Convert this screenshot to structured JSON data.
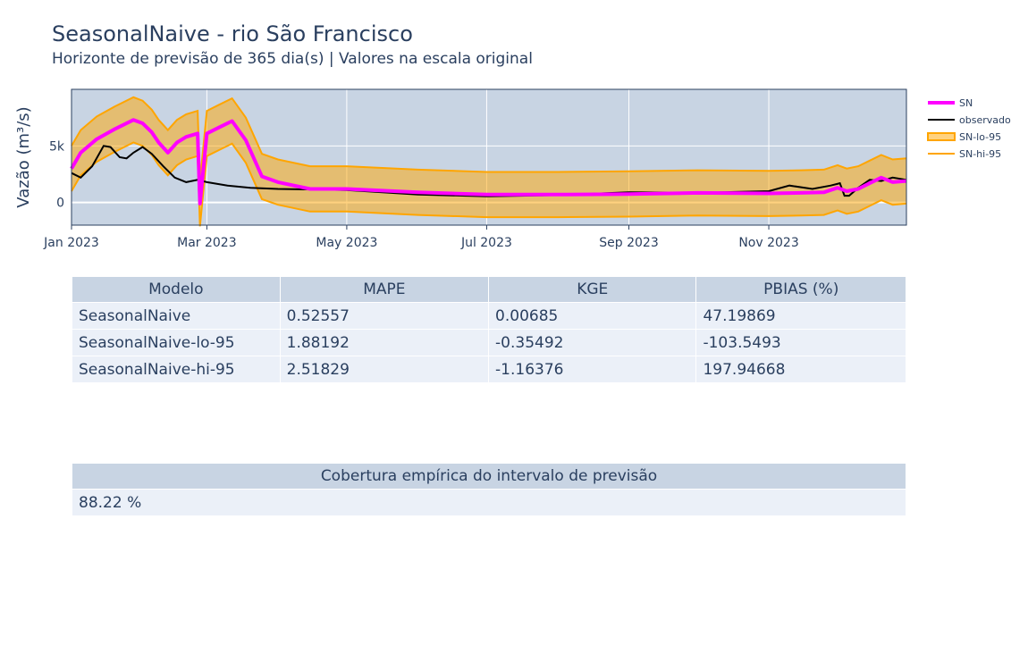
{
  "title": "SeasonalNaive - rio São Francisco",
  "subtitle": "Horizonte de previsão de 365 dia(s) | Valores na escala original",
  "chart_data": {
    "type": "line",
    "ylabel": "Vazão (m³/s)",
    "xlabel": "",
    "x_tick_labels": [
      "Jan 2023",
      "Mar 2023",
      "May 2023",
      "Jul 2023",
      "Sep 2023",
      "Nov 2023"
    ],
    "x_tick_dates": [
      "2023-01-01",
      "2023-03-01",
      "2023-05-01",
      "2023-07-01",
      "2023-09-01",
      "2023-11-01"
    ],
    "xlim": [
      "2023-01-01",
      "2023-12-31"
    ],
    "y_tick_labels": [
      "0",
      "5k"
    ],
    "y_tick_values": [
      0,
      5000
    ],
    "ylim": [
      -2000,
      10000
    ],
    "grid": true,
    "legend_position": "right",
    "colors": {
      "plot_bg": "#c8d4e3",
      "SN": "#ff00ff",
      "observado": "#000000",
      "band_line": "#ffa500",
      "band_fill": "rgba(255,165,0,0.5)"
    },
    "series": [
      {
        "name": "SN",
        "x": [
          "2023-01-01",
          "2023-01-05",
          "2023-01-12",
          "2023-01-20",
          "2023-01-28",
          "2023-02-01",
          "2023-02-05",
          "2023-02-08",
          "2023-02-12",
          "2023-02-16",
          "2023-02-20",
          "2023-02-25",
          "2023-02-26",
          "2023-03-01",
          "2023-03-06",
          "2023-03-12",
          "2023-03-18",
          "2023-03-25",
          "2023-04-01",
          "2023-04-15",
          "2023-05-01",
          "2023-06-01",
          "2023-07-01",
          "2023-08-01",
          "2023-09-01",
          "2023-10-01",
          "2023-11-01",
          "2023-11-15",
          "2023-11-25",
          "2023-12-01",
          "2023-12-05",
          "2023-12-10",
          "2023-12-15",
          "2023-12-20",
          "2023-12-25",
          "2023-12-31"
        ],
        "values": [
          3000,
          4400,
          5600,
          6500,
          7300,
          7000,
          6200,
          5300,
          4400,
          5300,
          5800,
          6100,
          -100,
          6100,
          6600,
          7200,
          5500,
          2300,
          1800,
          1200,
          1200,
          900,
          700,
          700,
          750,
          850,
          800,
          850,
          900,
          1300,
          1000,
          1200,
          1700,
          2200,
          1800,
          1900
        ]
      },
      {
        "name": "observado",
        "x": [
          "2023-01-01",
          "2023-01-05",
          "2023-01-10",
          "2023-01-15",
          "2023-01-18",
          "2023-01-22",
          "2023-01-25",
          "2023-01-28",
          "2023-02-01",
          "2023-02-05",
          "2023-02-10",
          "2023-02-15",
          "2023-02-20",
          "2023-02-25",
          "2023-03-01",
          "2023-03-10",
          "2023-03-20",
          "2023-04-01",
          "2023-05-01",
          "2023-06-01",
          "2023-07-01",
          "2023-08-01",
          "2023-09-01",
          "2023-10-01",
          "2023-11-01",
          "2023-11-10",
          "2023-11-20",
          "2023-11-28",
          "2023-12-02",
          "2023-12-04",
          "2023-12-06",
          "2023-12-10",
          "2023-12-15",
          "2023-12-20",
          "2023-12-25",
          "2023-12-31"
        ],
        "values": [
          2600,
          2200,
          3200,
          5000,
          4900,
          4000,
          3900,
          4400,
          4900,
          4300,
          3200,
          2200,
          1800,
          2000,
          1800,
          1500,
          1300,
          1200,
          1100,
          700,
          550,
          650,
          900,
          850,
          1000,
          1500,
          1200,
          1500,
          1700,
          600,
          600,
          1300,
          2000,
          1900,
          2200,
          2000
        ]
      },
      {
        "name": "SN-lo-95",
        "x": [
          "2023-01-01",
          "2023-01-05",
          "2023-01-12",
          "2023-01-20",
          "2023-01-28",
          "2023-02-01",
          "2023-02-05",
          "2023-02-08",
          "2023-02-12",
          "2023-02-16",
          "2023-02-20",
          "2023-02-25",
          "2023-02-26",
          "2023-03-01",
          "2023-03-06",
          "2023-03-12",
          "2023-03-18",
          "2023-03-25",
          "2023-04-01",
          "2023-04-15",
          "2023-05-01",
          "2023-06-01",
          "2023-07-01",
          "2023-08-01",
          "2023-09-01",
          "2023-10-01",
          "2023-11-01",
          "2023-11-15",
          "2023-11-25",
          "2023-12-01",
          "2023-12-05",
          "2023-12-10",
          "2023-12-15",
          "2023-12-20",
          "2023-12-25",
          "2023-12-31"
        ],
        "values": [
          1000,
          2400,
          3600,
          4500,
          5300,
          5000,
          4200,
          3300,
          2400,
          3300,
          3800,
          4100,
          -2100,
          4100,
          4600,
          5200,
          3500,
          300,
          -200,
          -800,
          -800,
          -1100,
          -1300,
          -1300,
          -1250,
          -1150,
          -1200,
          -1150,
          -1100,
          -700,
          -1000,
          -800,
          -300,
          200,
          -200,
          -100
        ]
      },
      {
        "name": "SN-hi-95",
        "x": [
          "2023-01-01",
          "2023-01-05",
          "2023-01-12",
          "2023-01-20",
          "2023-01-28",
          "2023-02-01",
          "2023-02-05",
          "2023-02-08",
          "2023-02-12",
          "2023-02-16",
          "2023-02-20",
          "2023-02-25",
          "2023-02-26",
          "2023-03-01",
          "2023-03-06",
          "2023-03-12",
          "2023-03-18",
          "2023-03-25",
          "2023-04-01",
          "2023-04-15",
          "2023-05-01",
          "2023-06-01",
          "2023-07-01",
          "2023-08-01",
          "2023-09-01",
          "2023-10-01",
          "2023-11-01",
          "2023-11-15",
          "2023-11-25",
          "2023-12-01",
          "2023-12-05",
          "2023-12-10",
          "2023-12-15",
          "2023-12-20",
          "2023-12-25",
          "2023-12-31"
        ],
        "values": [
          5000,
          6400,
          7600,
          8500,
          9300,
          9000,
          8200,
          7300,
          6400,
          7300,
          7800,
          8100,
          1900,
          8100,
          8600,
          9200,
          7500,
          4300,
          3800,
          3200,
          3200,
          2900,
          2700,
          2700,
          2750,
          2850,
          2800,
          2850,
          2900,
          3300,
          3000,
          3200,
          3700,
          4200,
          3800,
          3900
        ]
      }
    ]
  },
  "metrics_table": {
    "headers": [
      "Modelo",
      "MAPE",
      "KGE",
      "PBIAS (%)"
    ],
    "rows": [
      [
        "SeasonalNaive",
        "0.52557",
        "0.00685",
        "47.19869"
      ],
      [
        "SeasonalNaive-lo-95",
        "1.88192",
        "-0.35492",
        "-103.5493"
      ],
      [
        "SeasonalNaive-hi-95",
        "2.51829",
        "-1.16376",
        "197.94668"
      ]
    ]
  },
  "coverage_table": {
    "header": "Cobertura empírica do intervalo de previsão",
    "value": "88.22 %"
  }
}
